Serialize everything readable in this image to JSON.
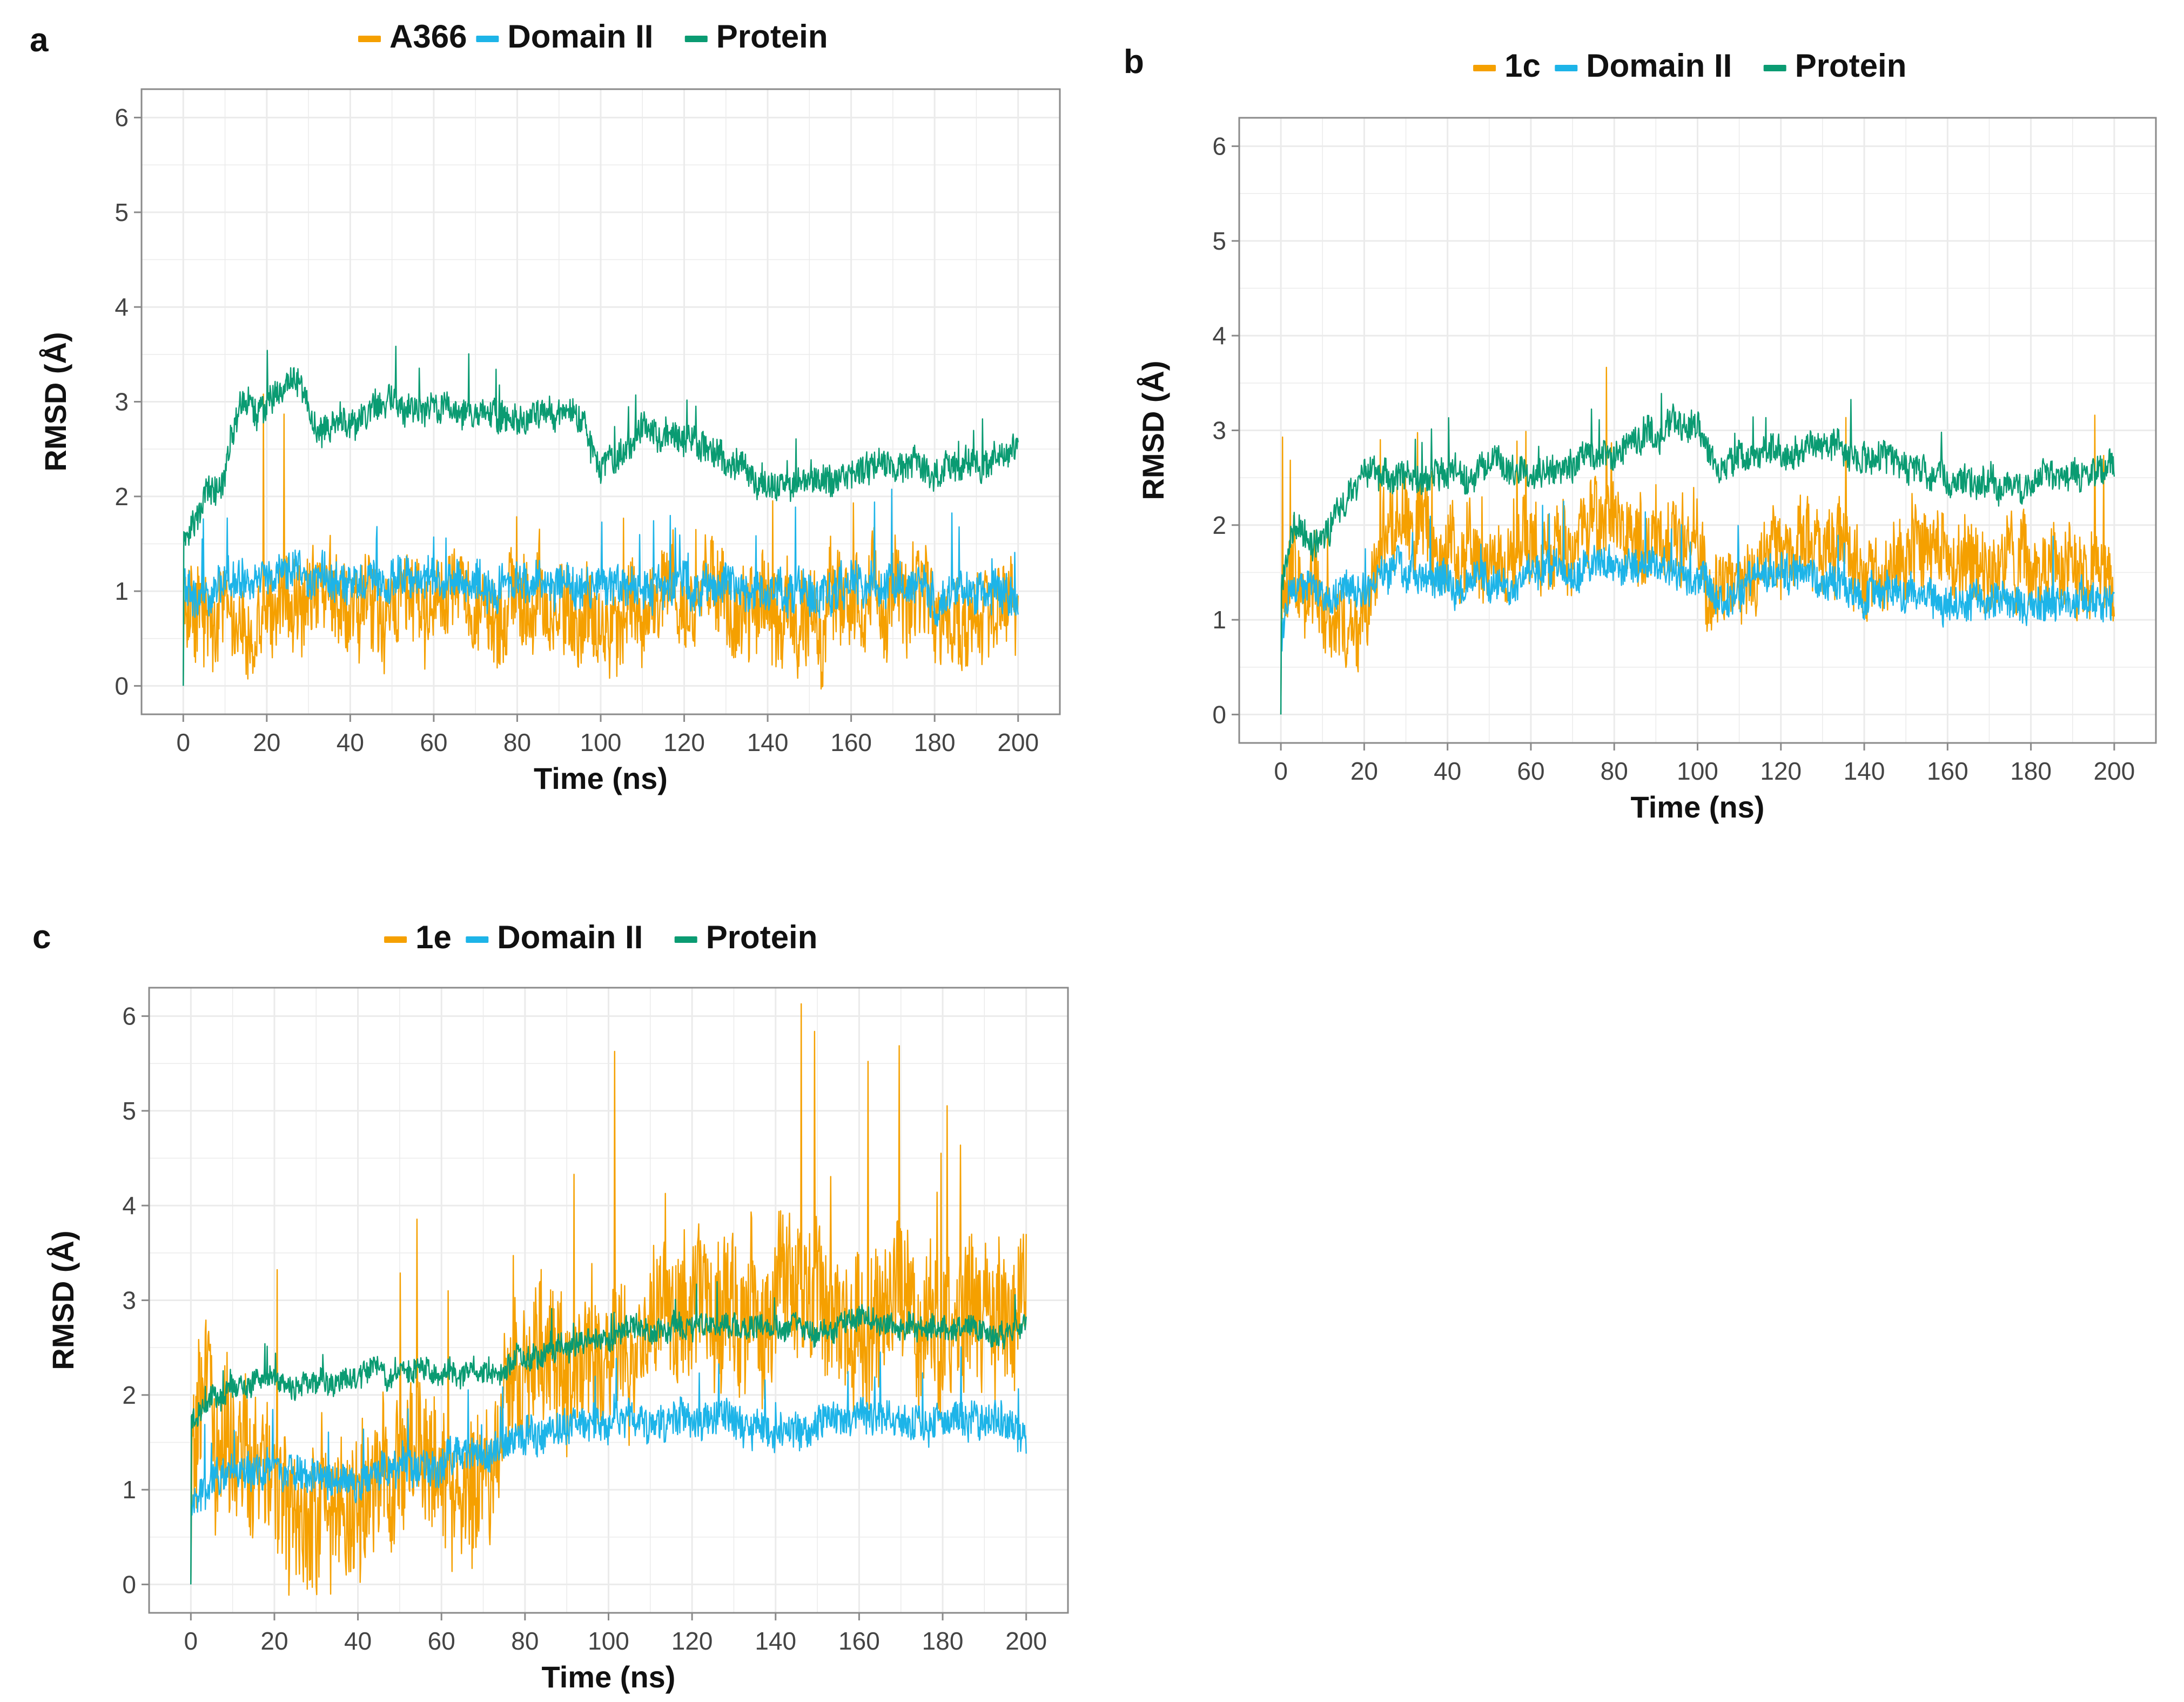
{
  "figure": {
    "background": "#ffffff",
    "panels": [
      "a",
      "b",
      "c"
    ]
  },
  "colors": {
    "ligand": "#F5A000",
    "domain": "#1DB4E8",
    "protein": "#0A9B72",
    "frame": "#8a8a8a",
    "grid": "#ebebeb",
    "tick_text": "#444444",
    "title_text": "#111111"
  },
  "chart_data": [
    {
      "panel_label": "a",
      "type": "line",
      "xlabel": "Time (ns)",
      "ylabel": "RMSD (Å)",
      "xlim": [
        -10,
        210
      ],
      "ylim": [
        -0.3,
        6.3
      ],
      "xticks": [
        0,
        20,
        40,
        60,
        80,
        100,
        120,
        140,
        160,
        180,
        200
      ],
      "yticks": [
        0,
        1,
        2,
        3,
        4,
        5,
        6
      ],
      "grid": true,
      "legend_position": "top",
      "series": [
        {
          "name": "A366",
          "color": "#F5A000",
          "x": [
            0,
            5,
            10,
            20,
            30,
            40,
            50,
            60,
            65,
            70,
            80,
            90,
            100,
            110,
            120,
            130,
            140,
            150,
            160,
            170,
            180,
            190,
            200
          ],
          "y": [
            1.0,
            0.7,
            0.75,
            0.8,
            0.85,
            0.8,
            0.8,
            0.85,
            1.0,
            0.8,
            0.8,
            0.8,
            0.75,
            0.8,
            0.8,
            0.8,
            0.8,
            0.8,
            0.8,
            0.85,
            0.8,
            0.8,
            0.8
          ],
          "band": 0.45
        },
        {
          "name": "Domain II",
          "color": "#1DB4E8",
          "x": [
            0,
            5,
            10,
            20,
            30,
            40,
            50,
            60,
            70,
            80,
            90,
            100,
            110,
            120,
            130,
            140,
            150,
            160,
            170,
            180,
            190,
            200
          ],
          "y": [
            1.0,
            1.05,
            1.1,
            1.15,
            1.15,
            1.1,
            1.15,
            1.15,
            1.1,
            1.1,
            1.05,
            1.0,
            1.05,
            1.1,
            1.05,
            1.0,
            1.0,
            1.0,
            1.0,
            1.0,
            1.0,
            1.0
          ],
          "band": 0.2
        },
        {
          "name": "Protein",
          "color": "#0A9B72",
          "x": [
            0,
            5,
            10,
            14,
            20,
            25,
            28,
            32,
            40,
            50,
            60,
            70,
            80,
            90,
            95,
            100,
            110,
            120,
            130,
            140,
            150,
            160,
            170,
            180,
            190,
            200
          ],
          "y": [
            1.5,
            1.9,
            2.2,
            3.1,
            2.9,
            3.3,
            3.2,
            2.7,
            2.8,
            3.0,
            2.9,
            2.9,
            2.8,
            2.9,
            2.7,
            2.3,
            2.7,
            2.6,
            2.4,
            2.1,
            2.2,
            2.2,
            2.3,
            2.3,
            2.4,
            2.5
          ],
          "band": 0.15
        }
      ]
    },
    {
      "panel_label": "b",
      "type": "line",
      "xlabel": "Time (ns)",
      "ylabel": "RMSD (Å)",
      "xlim": [
        -10,
        210
      ],
      "ylim": [
        -0.3,
        6.3
      ],
      "xticks": [
        0,
        20,
        40,
        60,
        80,
        100,
        120,
        140,
        160,
        180,
        200
      ],
      "yticks": [
        0,
        1,
        2,
        3,
        4,
        5,
        6
      ],
      "grid": true,
      "legend_position": "top",
      "series": [
        {
          "name": "1c",
          "color": "#F5A000",
          "x": [
            0,
            3,
            10,
            20,
            25,
            30,
            40,
            50,
            60,
            70,
            80,
            90,
            100,
            102,
            110,
            120,
            130,
            140,
            150,
            160,
            170,
            180,
            190,
            200
          ],
          "y": [
            1.0,
            1.6,
            1.2,
            1.1,
            1.9,
            2.0,
            1.7,
            1.6,
            1.7,
            1.9,
            2.0,
            2.0,
            1.7,
            1.2,
            1.5,
            1.7,
            1.8,
            1.7,
            1.6,
            1.6,
            1.6,
            1.7,
            1.6,
            1.5
          ],
          "band": 0.4
        },
        {
          "name": "Domain II",
          "color": "#1DB4E8",
          "x": [
            0,
            3,
            10,
            20,
            25,
            30,
            40,
            50,
            60,
            70,
            80,
            90,
            100,
            105,
            110,
            120,
            130,
            140,
            150,
            160,
            170,
            180,
            190,
            200
          ],
          "y": [
            0.8,
            1.4,
            1.3,
            1.3,
            1.6,
            1.5,
            1.4,
            1.4,
            1.5,
            1.5,
            1.6,
            1.6,
            1.4,
            1.2,
            1.3,
            1.5,
            1.4,
            1.3,
            1.3,
            1.2,
            1.2,
            1.2,
            1.2,
            1.2
          ],
          "band": 0.18
        },
        {
          "name": "Protein",
          "color": "#0A9B72",
          "x": [
            0,
            3,
            8,
            15,
            20,
            30,
            40,
            50,
            60,
            70,
            80,
            90,
            95,
            100,
            105,
            110,
            120,
            130,
            140,
            150,
            160,
            170,
            180,
            190,
            200
          ],
          "y": [
            1.4,
            2.0,
            1.8,
            2.2,
            2.5,
            2.5,
            2.5,
            2.6,
            2.5,
            2.6,
            2.8,
            3.0,
            3.1,
            3.0,
            2.6,
            2.7,
            2.8,
            2.8,
            2.7,
            2.6,
            2.5,
            2.4,
            2.4,
            2.5,
            2.6
          ],
          "band": 0.15
        }
      ]
    },
    {
      "panel_label": "c",
      "type": "line",
      "xlabel": "Time (ns)",
      "ylabel": "RMSD (Å)",
      "xlim": [
        -10,
        210
      ],
      "ylim": [
        -0.3,
        6.3
      ],
      "xticks": [
        0,
        20,
        40,
        60,
        80,
        100,
        120,
        140,
        160,
        180,
        200
      ],
      "yticks": [
        0,
        1,
        2,
        3,
        4,
        5,
        6
      ],
      "grid": true,
      "legend_position": "top",
      "series": [
        {
          "name": "1e",
          "color": "#F5A000",
          "x": [
            0,
            3,
            8,
            15,
            25,
            35,
            45,
            55,
            65,
            72,
            76,
            85,
            90,
            100,
            110,
            120,
            130,
            140,
            150,
            160,
            170,
            180,
            190,
            200
          ],
          "y": [
            1.2,
            1.7,
            1.4,
            1.0,
            1.0,
            0.9,
            0.9,
            1.1,
            1.0,
            1.0,
            2.1,
            2.4,
            2.5,
            2.4,
            2.8,
            3.0,
            3.0,
            2.9,
            3.0,
            2.9,
            2.8,
            2.7,
            2.7,
            2.7
          ],
          "band": 0.7
        },
        {
          "name": "Domain II",
          "color": "#1DB4E8",
          "x": [
            0,
            3,
            10,
            20,
            30,
            40,
            50,
            60,
            70,
            75,
            80,
            90,
            100,
            110,
            120,
            130,
            140,
            150,
            160,
            170,
            180,
            190,
            200
          ],
          "y": [
            0.8,
            1.1,
            1.2,
            1.2,
            1.1,
            1.1,
            1.2,
            1.3,
            1.4,
            1.5,
            1.6,
            1.7,
            1.7,
            1.7,
            1.8,
            1.7,
            1.6,
            1.7,
            1.8,
            1.7,
            1.7,
            1.7,
            1.6
          ],
          "band": 0.18
        },
        {
          "name": "Protein",
          "color": "#0A9B72",
          "x": [
            0,
            3,
            10,
            20,
            30,
            40,
            50,
            60,
            70,
            75,
            80,
            90,
            100,
            110,
            120,
            130,
            140,
            150,
            160,
            170,
            180,
            190,
            200
          ],
          "y": [
            1.7,
            1.9,
            2.1,
            2.2,
            2.1,
            2.2,
            2.3,
            2.2,
            2.3,
            2.2,
            2.4,
            2.5,
            2.6,
            2.7,
            2.7,
            2.7,
            2.7,
            2.7,
            2.8,
            2.7,
            2.7,
            2.7,
            2.7
          ],
          "band": 0.12
        }
      ]
    }
  ]
}
